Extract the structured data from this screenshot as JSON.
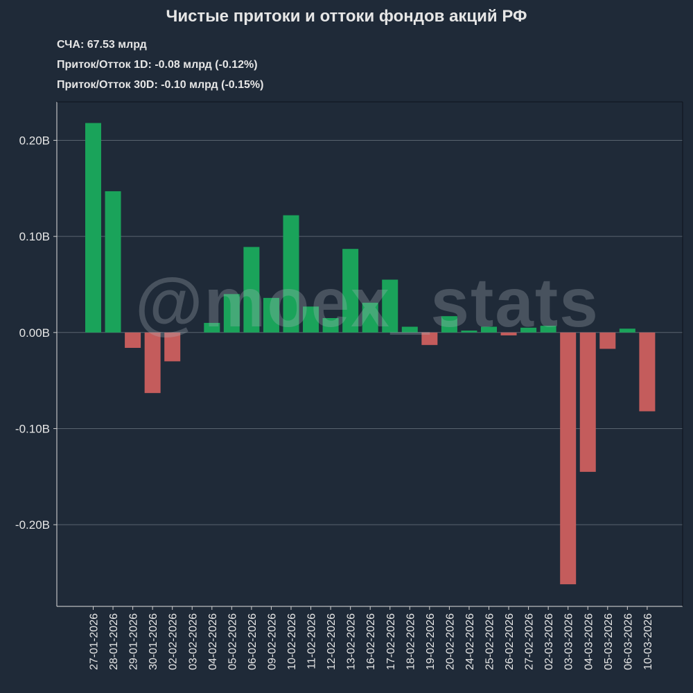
{
  "header": {
    "title": "Чистые притоки и оттоки фондов акций РФ",
    "nav": "СЧА: 67.53 млрд",
    "flow_1d": "Приток/Отток 1D: -0.08 млрд (-0.12%)",
    "flow_30d": "Приток/Отток 30D: -0.10 млрд (-0.15%)"
  },
  "watermark": "@moex_stats",
  "colors": {
    "background": "#1f2a38",
    "positive": "#1aa35a",
    "negative": "#c45c5c",
    "grid": "#5a6470",
    "text": "#e6e6e6"
  },
  "chart_data": {
    "type": "bar",
    "title": "Чистые притоки и оттоки фондов акций РФ",
    "xlabel": "",
    "ylabel": "",
    "ylim": [
      -0.285,
      0.24
    ],
    "yticks": [
      0.2,
      0.1,
      0.0,
      -0.1,
      -0.2
    ],
    "ytick_labels": [
      "0.20B",
      "0.10B",
      "0.00B",
      "-0.10B",
      "-0.20B"
    ],
    "grid": "horizontal",
    "categories": [
      "27-01-2026",
      "28-01-2026",
      "29-01-2026",
      "30-01-2026",
      "02-02-2026",
      "03-02-2026",
      "04-02-2026",
      "05-02-2026",
      "06-02-2026",
      "09-02-2026",
      "10-02-2026",
      "11-02-2026",
      "12-02-2026",
      "13-02-2026",
      "16-02-2026",
      "17-02-2026",
      "18-02-2026",
      "19-02-2026",
      "20-02-2026",
      "24-02-2026",
      "25-02-2026",
      "26-02-2026",
      "27-02-2026",
      "02-03-2026",
      "03-03-2026",
      "04-03-2026",
      "05-03-2026",
      "06-03-2026",
      "10-03-2026"
    ],
    "values": [
      0.218,
      0.147,
      -0.016,
      -0.063,
      -0.03,
      0.0,
      0.01,
      0.04,
      0.089,
      0.036,
      0.122,
      0.027,
      0.015,
      0.087,
      0.031,
      0.055,
      0.006,
      -0.013,
      0.017,
      0.002,
      0.006,
      -0.003,
      0.005,
      0.007,
      -0.262,
      -0.145,
      -0.017,
      0.004,
      -0.082
    ]
  }
}
